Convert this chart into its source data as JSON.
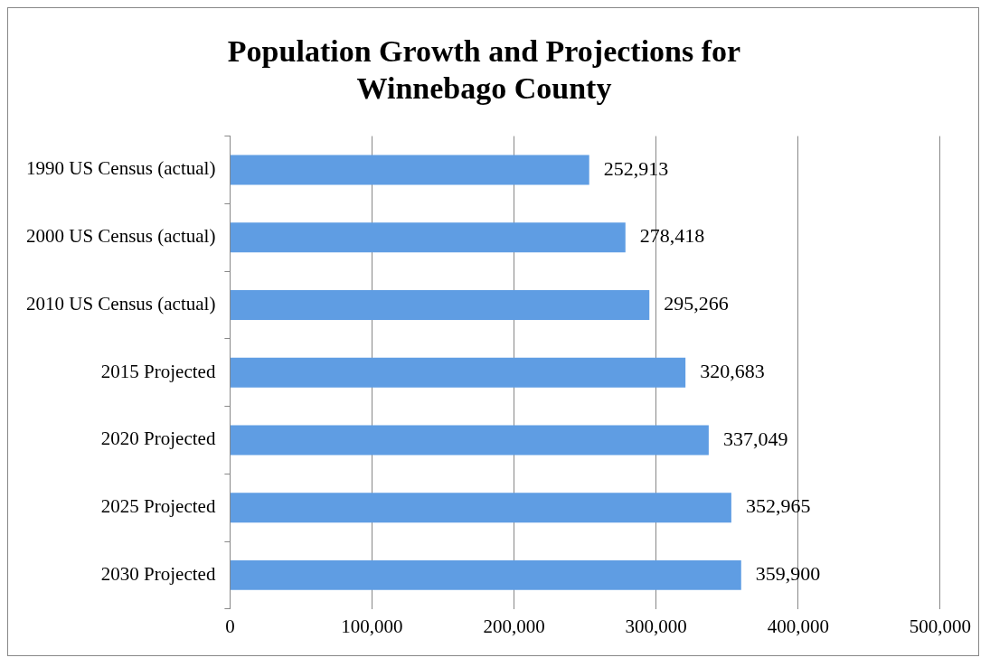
{
  "chart_data": {
    "type": "bar",
    "orientation": "horizontal",
    "title": [
      "Population Growth and Projections for",
      "Winnebago County"
    ],
    "categories": [
      "1990 US Census (actual)",
      "2000 US Census (actual)",
      "2010 US Census (actual)",
      "2015 Projected",
      "2020 Projected",
      "2025 Projected",
      "2030 Projected"
    ],
    "values": [
      252913,
      278418,
      295266,
      320683,
      337049,
      352965,
      359900
    ],
    "value_labels": [
      "252,913",
      "278,418",
      "295,266",
      "320,683",
      "337,049",
      "352,965",
      "359,900"
    ],
    "color": "#5f9de3",
    "xlim": [
      0,
      500000
    ],
    "xticks": [
      0,
      {
        "value": 100000,
        "label": "100,000"
      },
      {
        "value": 200000,
        "label": "200,000"
      },
      {
        "value": 300000,
        "label": "300,000"
      },
      {
        "value": 400000,
        "label": "400,000"
      },
      {
        "value": 500000,
        "label": "500,000"
      }
    ],
    "grid": "x",
    "legend": false
  }
}
